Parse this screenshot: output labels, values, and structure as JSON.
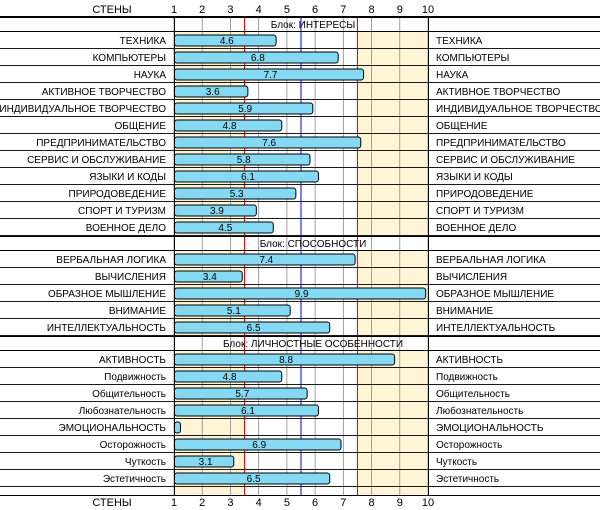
{
  "chart_data": {
    "type": "bar",
    "orientation": "horizontal",
    "axis_title": "СТЕНЫ",
    "ticks": [
      1,
      2,
      3,
      4,
      5,
      6,
      7,
      8,
      9,
      10
    ],
    "xlim": [
      1,
      10
    ],
    "reference_lines": [
      {
        "value": 3.5,
        "color": "#e01010"
      },
      {
        "value": 5.5,
        "color": "#1a1ae6"
      },
      {
        "value": 7.5,
        "color": "#e01010"
      }
    ],
    "shaded_ranges": [
      {
        "from": 1,
        "to": 3.5,
        "color": "#fff5d6"
      },
      {
        "from": 7.5,
        "to": 10,
        "color": "#fff5d6"
      }
    ],
    "bar_fill": "#86d9f2",
    "blocks": [
      {
        "title": "Блок: ИНТЕРЕСЫ",
        "items": [
          {
            "label": "ТЕХНИКА",
            "value": 4.6
          },
          {
            "label": "КОМПЬЮТЕРЫ",
            "value": 6.8
          },
          {
            "label": "НАУКА",
            "value": 7.7
          },
          {
            "label": "АКТИВНОЕ ТВОРЧЕСТВО",
            "value": 3.6
          },
          {
            "label": "ИНДИВИДУАЛЬНОЕ ТВОРЧЕСТВО",
            "value": 5.9
          },
          {
            "label": "ОБЩЕНИЕ",
            "value": 4.8
          },
          {
            "label": "ПРЕДПРИНИМАТЕЛЬСТВО",
            "value": 7.6
          },
          {
            "label": "СЕРВИС И ОБСЛУЖИВАНИЕ",
            "value": 5.8
          },
          {
            "label": "ЯЗЫКИ И КОДЫ",
            "value": 6.1
          },
          {
            "label": "ПРИРОДОВЕДЕНИЕ",
            "value": 5.3
          },
          {
            "label": "СПОРТ И ТУРИЗМ",
            "value": 3.9
          },
          {
            "label": "ВОЕННОЕ ДЕЛО",
            "value": 4.5
          }
        ]
      },
      {
        "title": "Блок: СПОСОБНОСТИ",
        "items": [
          {
            "label": "ВЕРБАЛЬНАЯ ЛОГИКА",
            "value": 7.4
          },
          {
            "label": "ВЫЧИСЛЕНИЯ",
            "value": 3.4
          },
          {
            "label": "ОБРАЗНОЕ МЫШЛЕНИЕ",
            "value": 9.9
          },
          {
            "label": "ВНИМАНИЕ",
            "value": 5.1
          },
          {
            "label": "ИНТЕЛЛЕКТУАЛЬНОСТЬ",
            "value": 6.5
          }
        ]
      },
      {
        "title": "Блок: ЛИЧНОСТНЫЕ ОСОБЕННОСТИ",
        "items": [
          {
            "label": "АКТИВНОСТЬ",
            "value": 8.8
          },
          {
            "label": "Подвижность",
            "value": 4.8
          },
          {
            "label": "Общительность",
            "value": 5.7
          },
          {
            "label": "Любознательность",
            "value": 6.1
          },
          {
            "label": "ЭМОЦИОНАЛЬНОСТЬ",
            "value": 1.0,
            "show_value": false
          },
          {
            "label": "Осторожность",
            "value": 6.9
          },
          {
            "label": "Чуткость",
            "value": 3.1
          },
          {
            "label": "Эстетичность",
            "value": 6.5
          }
        ]
      }
    ]
  }
}
